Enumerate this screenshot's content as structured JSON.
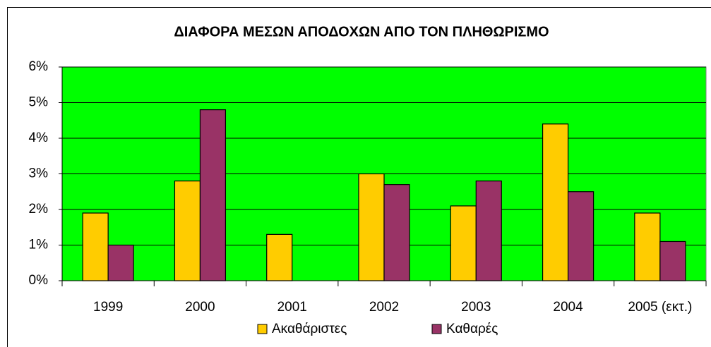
{
  "chart_data": {
    "type": "bar",
    "title": "ΔΙΑΦΟΡΑ ΜΕΣΩΝ ΑΠΟΔΟΧΩΝ ΑΠΟ ΤΟΝ ΠΛΗΘΩΡΙΣΜΟ",
    "categories": [
      "1999",
      "2000",
      "2001",
      "2002",
      "2003",
      "2004",
      "2005 (εκτ.)"
    ],
    "series": [
      {
        "name": "Ακαθάριστες",
        "color": "#ffcc00",
        "values": [
          1.9,
          2.8,
          1.3,
          3.0,
          2.1,
          4.4,
          1.9
        ]
      },
      {
        "name": "Καθαρές",
        "color": "#993366",
        "values": [
          1.0,
          4.8,
          0,
          2.7,
          2.8,
          2.5,
          1.1
        ]
      }
    ],
    "ylim": [
      0,
      6
    ],
    "yticks": [
      {
        "value": 0,
        "label": "0%"
      },
      {
        "value": 1,
        "label": "1%"
      },
      {
        "value": 2,
        "label": "2%"
      },
      {
        "value": 3,
        "label": "3%"
      },
      {
        "value": 4,
        "label": "4%"
      },
      {
        "value": 5,
        "label": "5%"
      },
      {
        "value": 6,
        "label": "6%"
      }
    ],
    "grid": true,
    "plot_background": "#00ff00",
    "legend": "bottom"
  }
}
